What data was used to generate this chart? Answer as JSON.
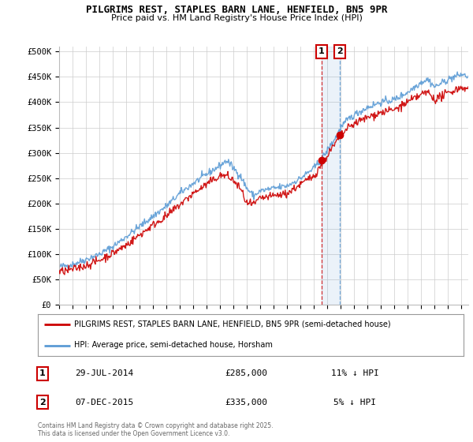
{
  "title": "PILGRIMS REST, STAPLES BARN LANE, HENFIELD, BN5 9PR",
  "subtitle": "Price paid vs. HM Land Registry's House Price Index (HPI)",
  "ylabel_ticks": [
    "£0",
    "£50K",
    "£100K",
    "£150K",
    "£200K",
    "£250K",
    "£300K",
    "£350K",
    "£400K",
    "£450K",
    "£500K"
  ],
  "ytick_vals": [
    0,
    50000,
    100000,
    150000,
    200000,
    250000,
    300000,
    350000,
    400000,
    450000,
    500000
  ],
  "ylim": [
    0,
    510000
  ],
  "xlim_start": 1995,
  "xlim_end": 2025.5,
  "hpi_color": "#5b9bd5",
  "price_color": "#cc0000",
  "marker1_date": 2014.57,
  "marker2_date": 2015.92,
  "marker1_price": 285000,
  "marker2_price": 335000,
  "legend_label_price": "PILGRIMS REST, STAPLES BARN LANE, HENFIELD, BN5 9PR (semi-detached house)",
  "legend_label_hpi": "HPI: Average price, semi-detached house, Horsham",
  "annotation1": [
    "1",
    "29-JUL-2014",
    "£285,000",
    "11% ↓ HPI"
  ],
  "annotation2": [
    "2",
    "07-DEC-2015",
    "£335,000",
    "5% ↓ HPI"
  ],
  "footer": "Contains HM Land Registry data © Crown copyright and database right 2025.\nThis data is licensed under the Open Government Licence v3.0.",
  "bg_color": "#ffffff",
  "plot_bg_color": "#ffffff",
  "grid_color": "#cccccc"
}
